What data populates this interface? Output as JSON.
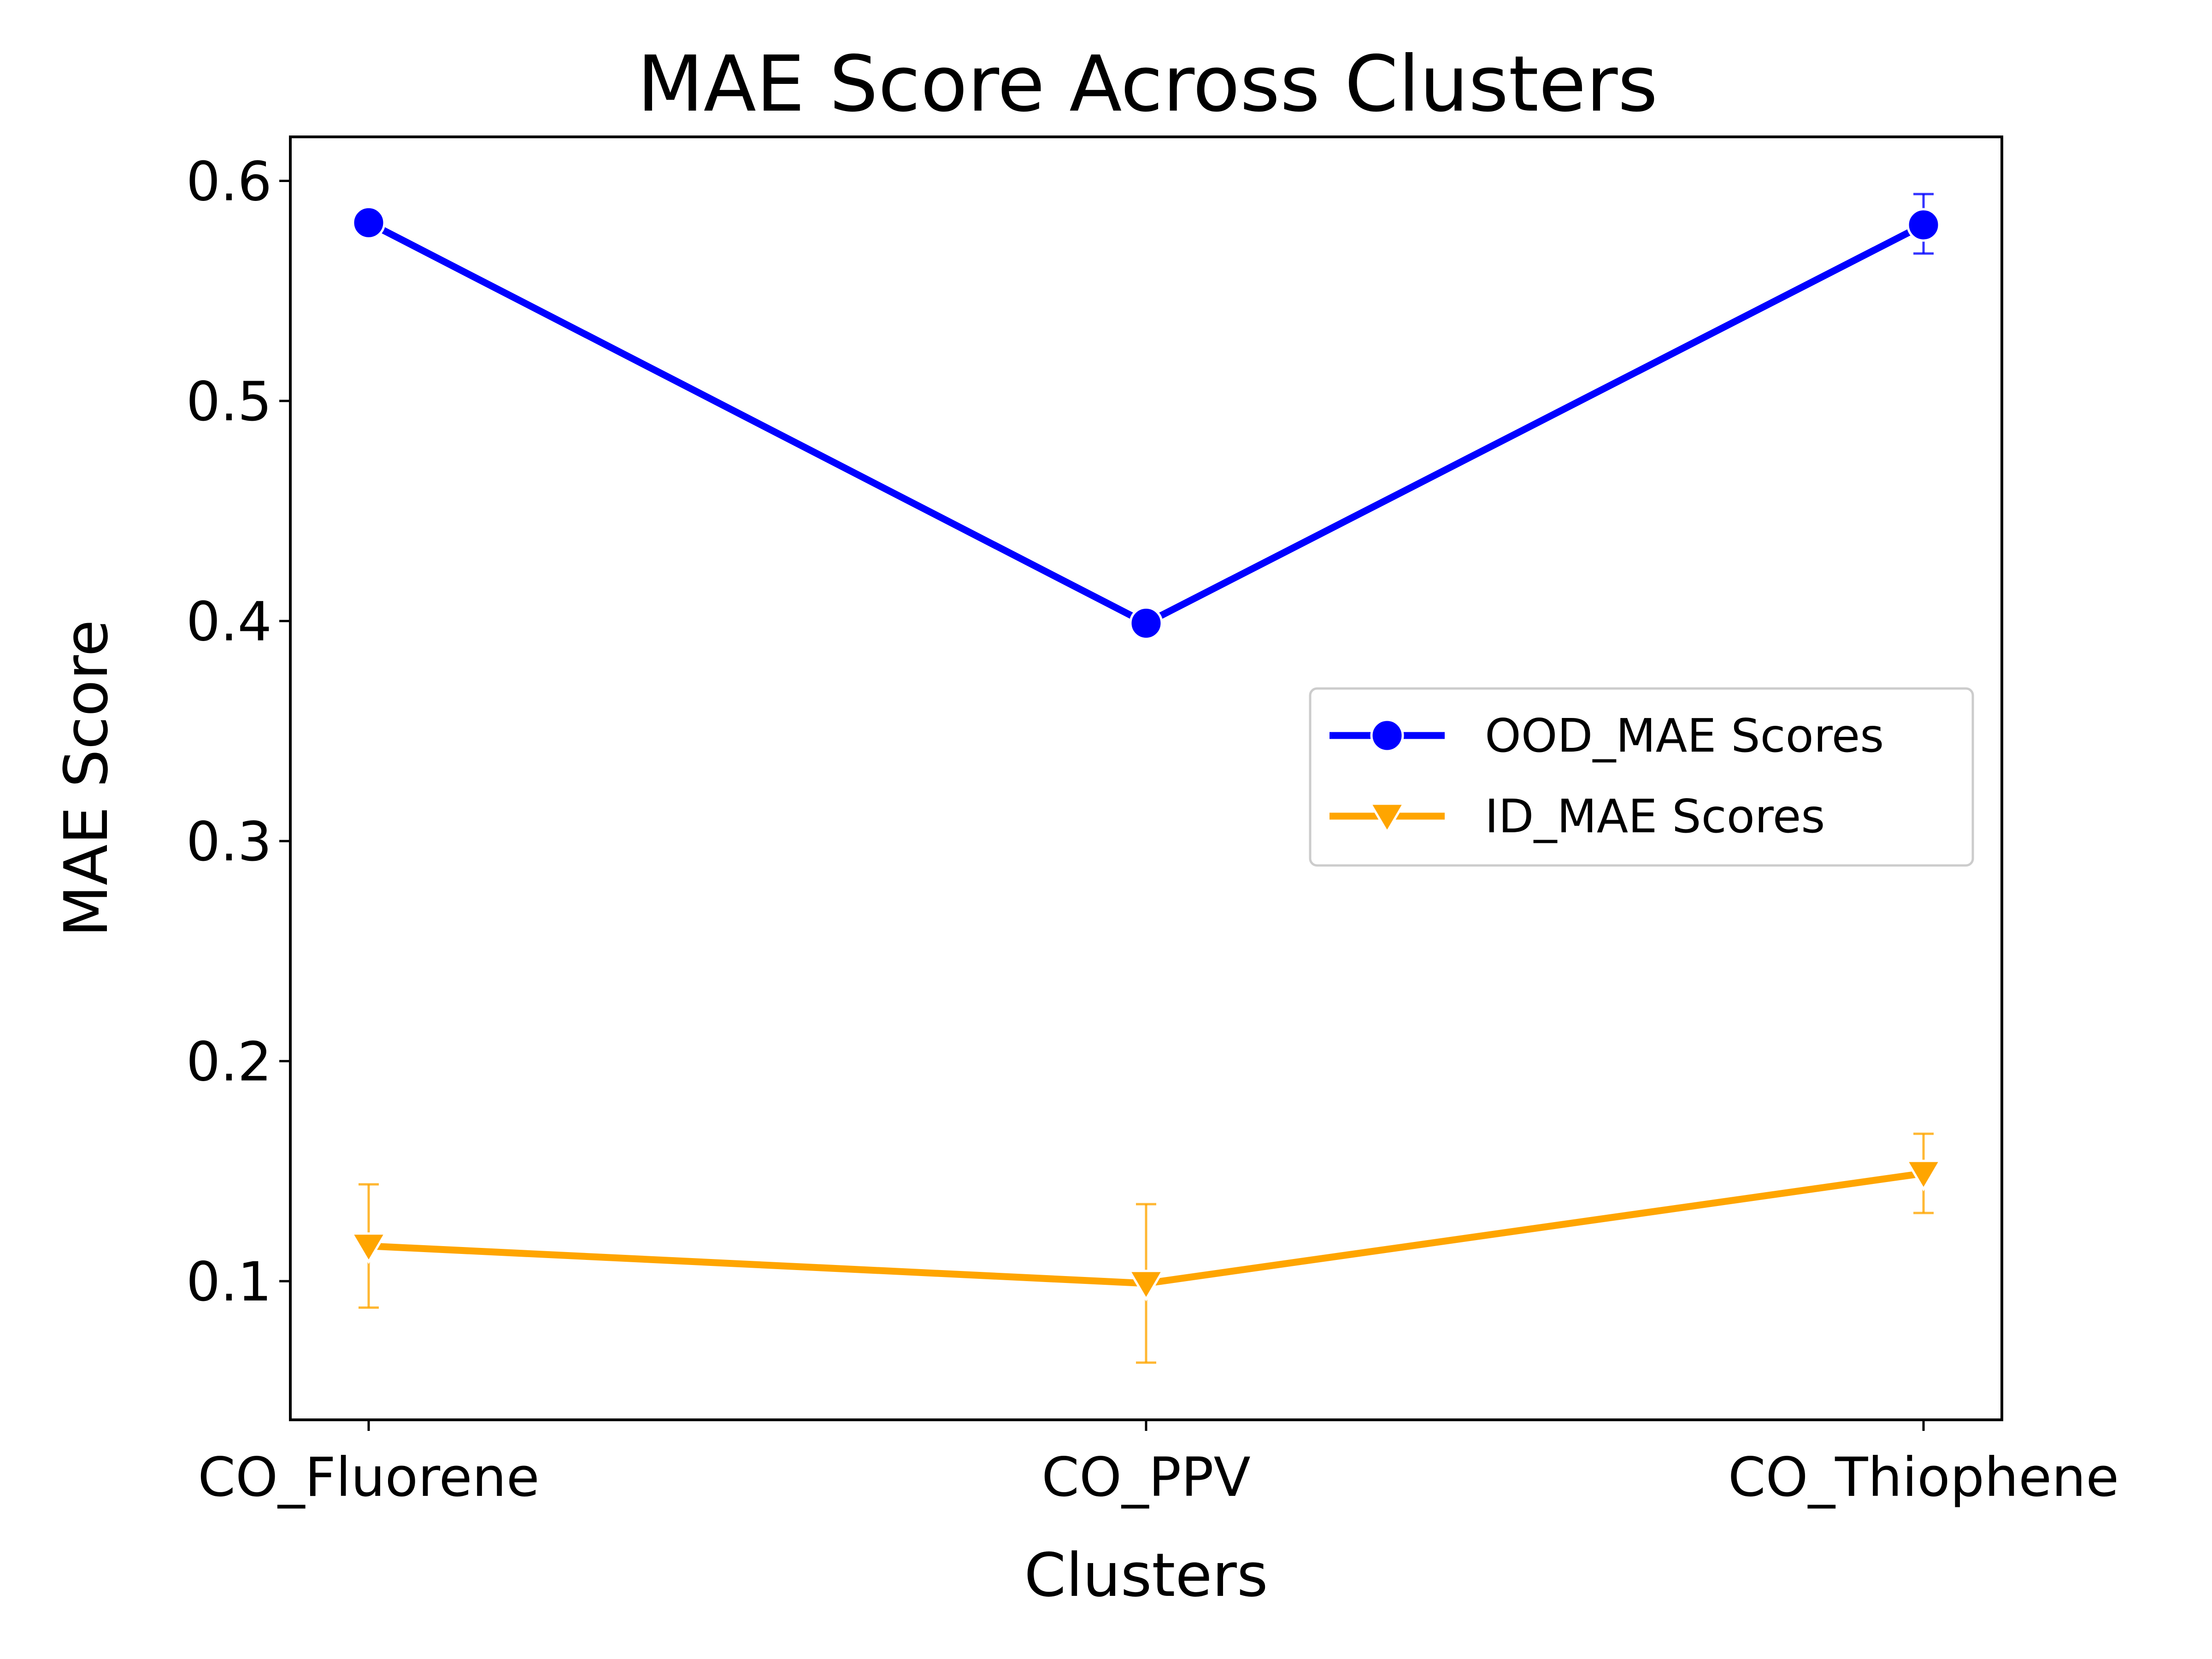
{
  "chart_data": {
    "type": "line",
    "title": "MAE Score Across Clusters",
    "xlabel": "Clusters",
    "ylabel": "MAE Score",
    "categories": [
      "CO_Fluorene",
      "CO_PPV",
      "CO_Thiophene"
    ],
    "ylim": [
      0.037,
      0.62
    ],
    "yticks": [
      0.1,
      0.2,
      0.3,
      0.4,
      0.5,
      0.6
    ],
    "ytick_labels": [
      "0.1",
      "0.2",
      "0.3",
      "0.4",
      "0.5",
      "0.6"
    ],
    "grid": false,
    "legend_position": "center-right",
    "series": [
      {
        "name": "OOD_MAE Scores",
        "values": [
          0.581,
          0.399,
          0.58
        ],
        "error_low": [
          0.581,
          0.399,
          0.567
        ],
        "error_high": [
          0.581,
          0.399,
          0.594
        ],
        "color": "#0000ff",
        "marker": "circle"
      },
      {
        "name": "ID_MAE Scores",
        "values": [
          0.116,
          0.099,
          0.149
        ],
        "error_low": [
          0.088,
          0.063,
          0.131
        ],
        "error_high": [
          0.144,
          0.135,
          0.167
        ],
        "color": "#ffa500",
        "marker": "triangle-down"
      }
    ]
  }
}
